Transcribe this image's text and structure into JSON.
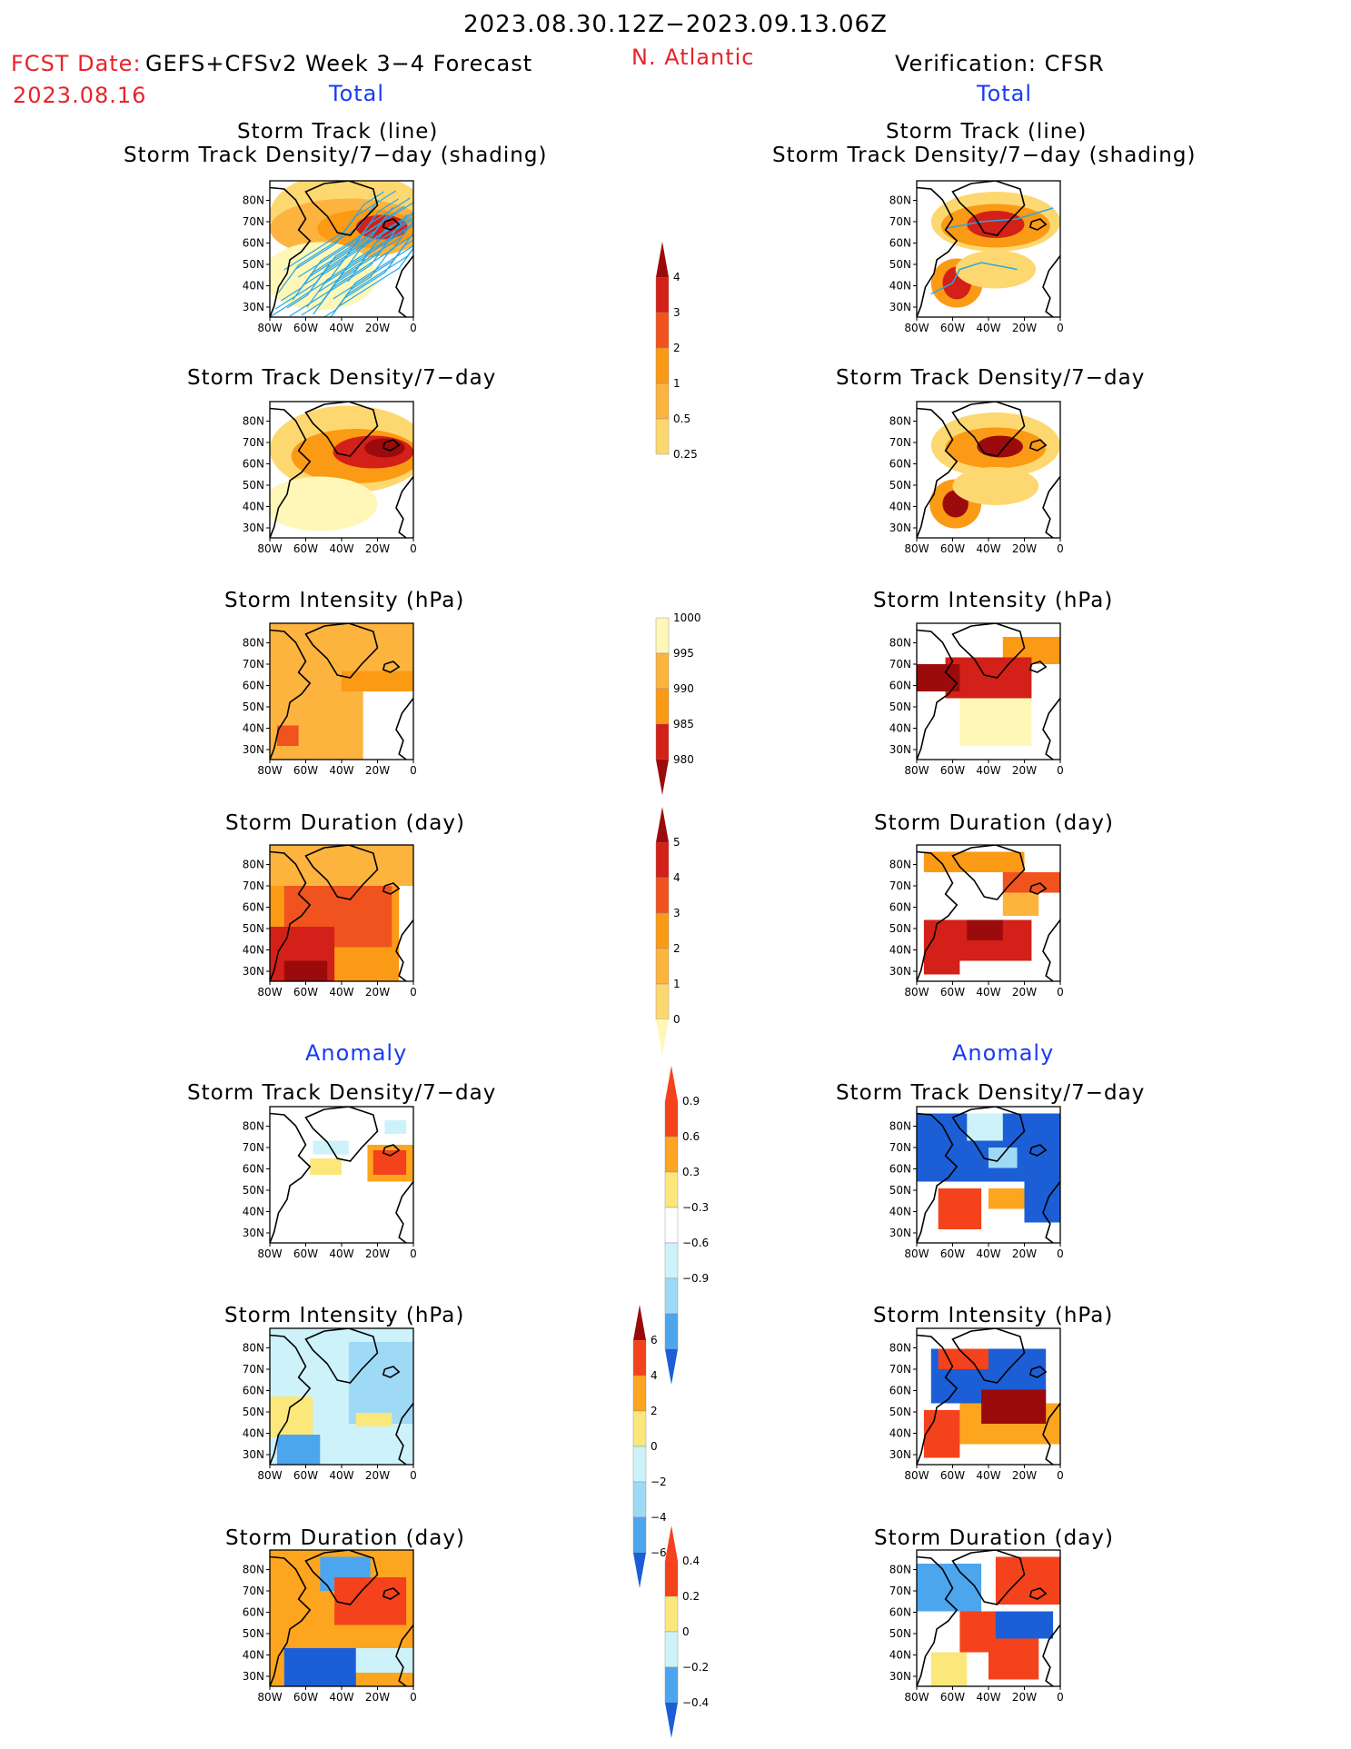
{
  "header": {
    "period": "2023.08.30.12Z−2023.09.13.06Z",
    "fcst_label": "FCST Date:",
    "fcst_model": "GEFS+CFSv2 Week 3−4 Forecast",
    "fcst_date": "2023.08.16",
    "region": "N. Atlantic",
    "verification": "Verification: CFSR",
    "total_left": "Total",
    "total_right": "Total",
    "anomaly_left": "Anomaly",
    "anomaly_right": "Anomaly"
  },
  "panel_titles": {
    "track_line": "Storm Track (line)",
    "track_shading": "Storm Track Density/7−day (shading)",
    "density": "Storm Track Density/7−day",
    "intensity": "Storm Intensity (hPa)",
    "duration": "Storm Duration (day)"
  },
  "axis": {
    "lat_labels": [
      "30N",
      "40N",
      "50N",
      "60N",
      "70N",
      "80N"
    ],
    "lon_labels": [
      "80W",
      "60W",
      "40W",
      "20W",
      "0"
    ]
  },
  "colors": {
    "pale_yellow": "#fff7b8",
    "yellow": "#fdd871",
    "light_orange": "#fdb43f",
    "orange": "#fb9a14",
    "red_orange": "#f0531e",
    "red": "#d32018",
    "dark_red": "#9c0b0b",
    "track_blue": "#2aa6e8",
    "light_cyan": "#cdf2fa",
    "light_blue": "#9ed9f6",
    "mid_blue": "#4ca6ee",
    "dark_blue": "#1c5ed6",
    "anom_yellow": "#fbe77a",
    "anom_orange": "#fda51e",
    "anom_red": "#f4421c",
    "anom_dark_red": "#9a0a0a"
  },
  "chart_data": [
    {
      "type": "heatmap",
      "title": "Storm Track Density/7−day (shading)",
      "legend": {
        "levels": [
          "0.25",
          "0.5",
          "1",
          "2",
          "3",
          "4"
        ]
      },
      "intensity_legend": {
        "levels": [
          "1000",
          "995",
          "990",
          "985",
          "980"
        ]
      },
      "duration_legend": {
        "levels": [
          "0",
          "1",
          "2",
          "3",
          "4",
          "5"
        ]
      },
      "density_anomaly_legend": {
        "levels": [
          "−0.9",
          "−0.6",
          "−0.3",
          "0.3",
          "0.6",
          "0.9"
        ]
      },
      "intensity_anomaly_legend": {
        "levels": [
          "−6",
          "−4",
          "−2",
          "0",
          "2",
          "4",
          "6"
        ]
      },
      "duration_anomaly_legend": {
        "levels": [
          "−0.4",
          "−0.2",
          "0",
          "0.2",
          "0.4"
        ]
      }
    }
  ]
}
